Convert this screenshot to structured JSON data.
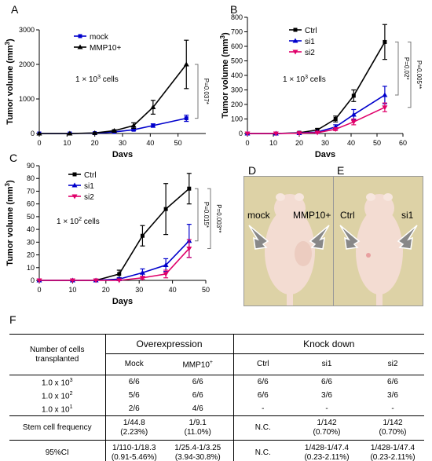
{
  "panels": {
    "A": "A",
    "B": "B",
    "C": "C",
    "D": "D",
    "E": "E",
    "F": "F"
  },
  "chart_data": [
    {
      "panel": "A",
      "type": "line",
      "xlabel": "Days",
      "ylabel": "Tumor volume (mm",
      "ylabel_sup": "3",
      "ylabel_tail": ")",
      "xlim": [
        0,
        60
      ],
      "ylim": [
        0,
        3000
      ],
      "xticks": [
        0,
        10,
        20,
        30,
        40,
        50
      ],
      "yticks": [
        0,
        1000,
        2000,
        3000
      ],
      "annotation": {
        "text": "1 × 10",
        "sup": "3",
        "tail": " cells"
      },
      "pvalues": [
        "P=0.037*"
      ],
      "x": [
        0,
        11,
        20,
        27,
        34,
        41,
        53
      ],
      "series": [
        {
          "name": "mock",
          "marker": "square",
          "color": "#0000cc",
          "values": [
            0,
            0,
            10,
            45,
            110,
            230,
            440
          ],
          "errors": [
            0,
            0,
            5,
            15,
            30,
            50,
            90
          ]
        },
        {
          "name": "MMP10+",
          "marker": "triangle",
          "color": "#000000",
          "values": [
            0,
            0,
            15,
            80,
            230,
            760,
            2000
          ],
          "errors": [
            0,
            0,
            8,
            30,
            80,
            200,
            700
          ]
        }
      ]
    },
    {
      "panel": "B",
      "type": "line",
      "xlabel": "Days",
      "ylabel": "Tumor volume (mm",
      "ylabel_sup": "3",
      "ylabel_tail": ")",
      "xlim": [
        0,
        60
      ],
      "ylim": [
        0,
        800
      ],
      "xticks": [
        0,
        10,
        20,
        30,
        40,
        50,
        60
      ],
      "yticks": [
        0,
        100,
        200,
        300,
        400,
        500,
        600,
        700,
        800
      ],
      "annotation": {
        "text": "1 × 10",
        "sup": "3",
        "tail": " cells"
      },
      "pvalues": [
        "P=0.02*",
        "P=0.005**"
      ],
      "x": [
        0,
        11,
        20,
        27,
        34,
        41,
        53
      ],
      "series": [
        {
          "name": "Ctrl",
          "marker": "square",
          "color": "#000000",
          "values": [
            0,
            0,
            5,
            25,
            100,
            260,
            630
          ],
          "errors": [
            0,
            0,
            3,
            10,
            20,
            40,
            120
          ]
        },
        {
          "name": "si1",
          "marker": "triangle",
          "color": "#0000cc",
          "values": [
            0,
            0,
            3,
            10,
            45,
            130,
            265
          ],
          "errors": [
            0,
            0,
            2,
            5,
            15,
            35,
            60
          ]
        },
        {
          "name": "si2",
          "marker": "triangle-down",
          "color": "#e0006a",
          "values": [
            0,
            0,
            2,
            6,
            30,
            80,
            180
          ],
          "errors": [
            0,
            0,
            1,
            4,
            10,
            20,
            30
          ]
        }
      ]
    },
    {
      "panel": "C",
      "type": "line",
      "xlabel": "Days",
      "ylabel": "Tumor volume (mm",
      "ylabel_sup": "3",
      "ylabel_tail": ")",
      "xlim": [
        0,
        50
      ],
      "ylim": [
        0,
        90
      ],
      "xticks": [
        0,
        10,
        20,
        30,
        40,
        50
      ],
      "yticks": [
        0,
        10,
        20,
        30,
        40,
        50,
        60,
        70,
        80,
        90
      ],
      "annotation": {
        "text": "1 × 10",
        "sup": "2",
        "tail": " cells"
      },
      "pvalues": [
        "P=0.015*",
        "P=0.003**"
      ],
      "x": [
        0,
        10,
        17,
        24,
        31,
        38,
        45
      ],
      "series": [
        {
          "name": "Ctrl",
          "marker": "square",
          "color": "#000000",
          "values": [
            0,
            0,
            0,
            5,
            35,
            56,
            72
          ],
          "errors": [
            0,
            0,
            0,
            3,
            8,
            20,
            12
          ]
        },
        {
          "name": "si1",
          "marker": "triangle",
          "color": "#0000cc",
          "values": [
            0,
            0,
            0,
            1,
            6,
            12,
            31
          ],
          "errors": [
            0,
            0,
            0,
            1,
            3,
            5,
            13
          ]
        },
        {
          "name": "si2",
          "marker": "triangle-down",
          "color": "#e0006a",
          "values": [
            0,
            0,
            0,
            0,
            2,
            5,
            25
          ],
          "errors": [
            0,
            0,
            0,
            0,
            1,
            3,
            7
          ]
        }
      ]
    },
    {
      "panel": "F",
      "type": "table",
      "header": {
        "col0": "Number of cells transplanted",
        "group1": "Overexpression",
        "group2": "Knock down",
        "mock": "Mock",
        "mmp10": "MMP10",
        "mmp10_sup": "+",
        "ctrl": "Ctrl",
        "si1": "si1",
        "si2": "si2"
      },
      "rows": [
        {
          "label": "1.0 x 10",
          "sup": "3",
          "cells": [
            "6/6",
            "6/6",
            "6/6",
            "6/6",
            "6/6"
          ]
        },
        {
          "label": "1.0 x 10",
          "sup": "2",
          "cells": [
            "5/6",
            "6/6",
            "6/6",
            "3/6",
            "3/6"
          ]
        },
        {
          "label": "1.0 x 10",
          "sup": "1",
          "cells": [
            "2/6",
            "4/6",
            "-",
            "-",
            "-"
          ]
        }
      ],
      "freq": {
        "label": "Stem cell frequency",
        "cells": [
          [
            "1/44.8",
            "(2.23%)"
          ],
          [
            "1/9.1",
            "(11.0%)"
          ],
          [
            "N.C.",
            ""
          ],
          [
            "1/142",
            "(0.70%)"
          ],
          [
            "1/142",
            "(0.70%)"
          ]
        ]
      },
      "ci": {
        "label": "95%CI",
        "cells": [
          [
            "1/110-1/18.3",
            "(0.91-5.46%)"
          ],
          [
            "1/25.4-1/3.25",
            "(3.94-30.8%)"
          ],
          [
            "N.C.",
            ""
          ],
          [
            "1/428-1/47.4",
            "(0.23-2.11%)"
          ],
          [
            "1/428-1/47.4",
            "(0.23-2.11%)"
          ]
        ]
      }
    }
  ],
  "photos": {
    "D": {
      "left": "mock",
      "right": "MMP10+"
    },
    "E": {
      "left": "Ctrl",
      "right": "si1"
    }
  },
  "colors": {
    "photo_bg": "#ddd2a6",
    "mouse": "#f3dcd2",
    "arrow": "#888888"
  }
}
